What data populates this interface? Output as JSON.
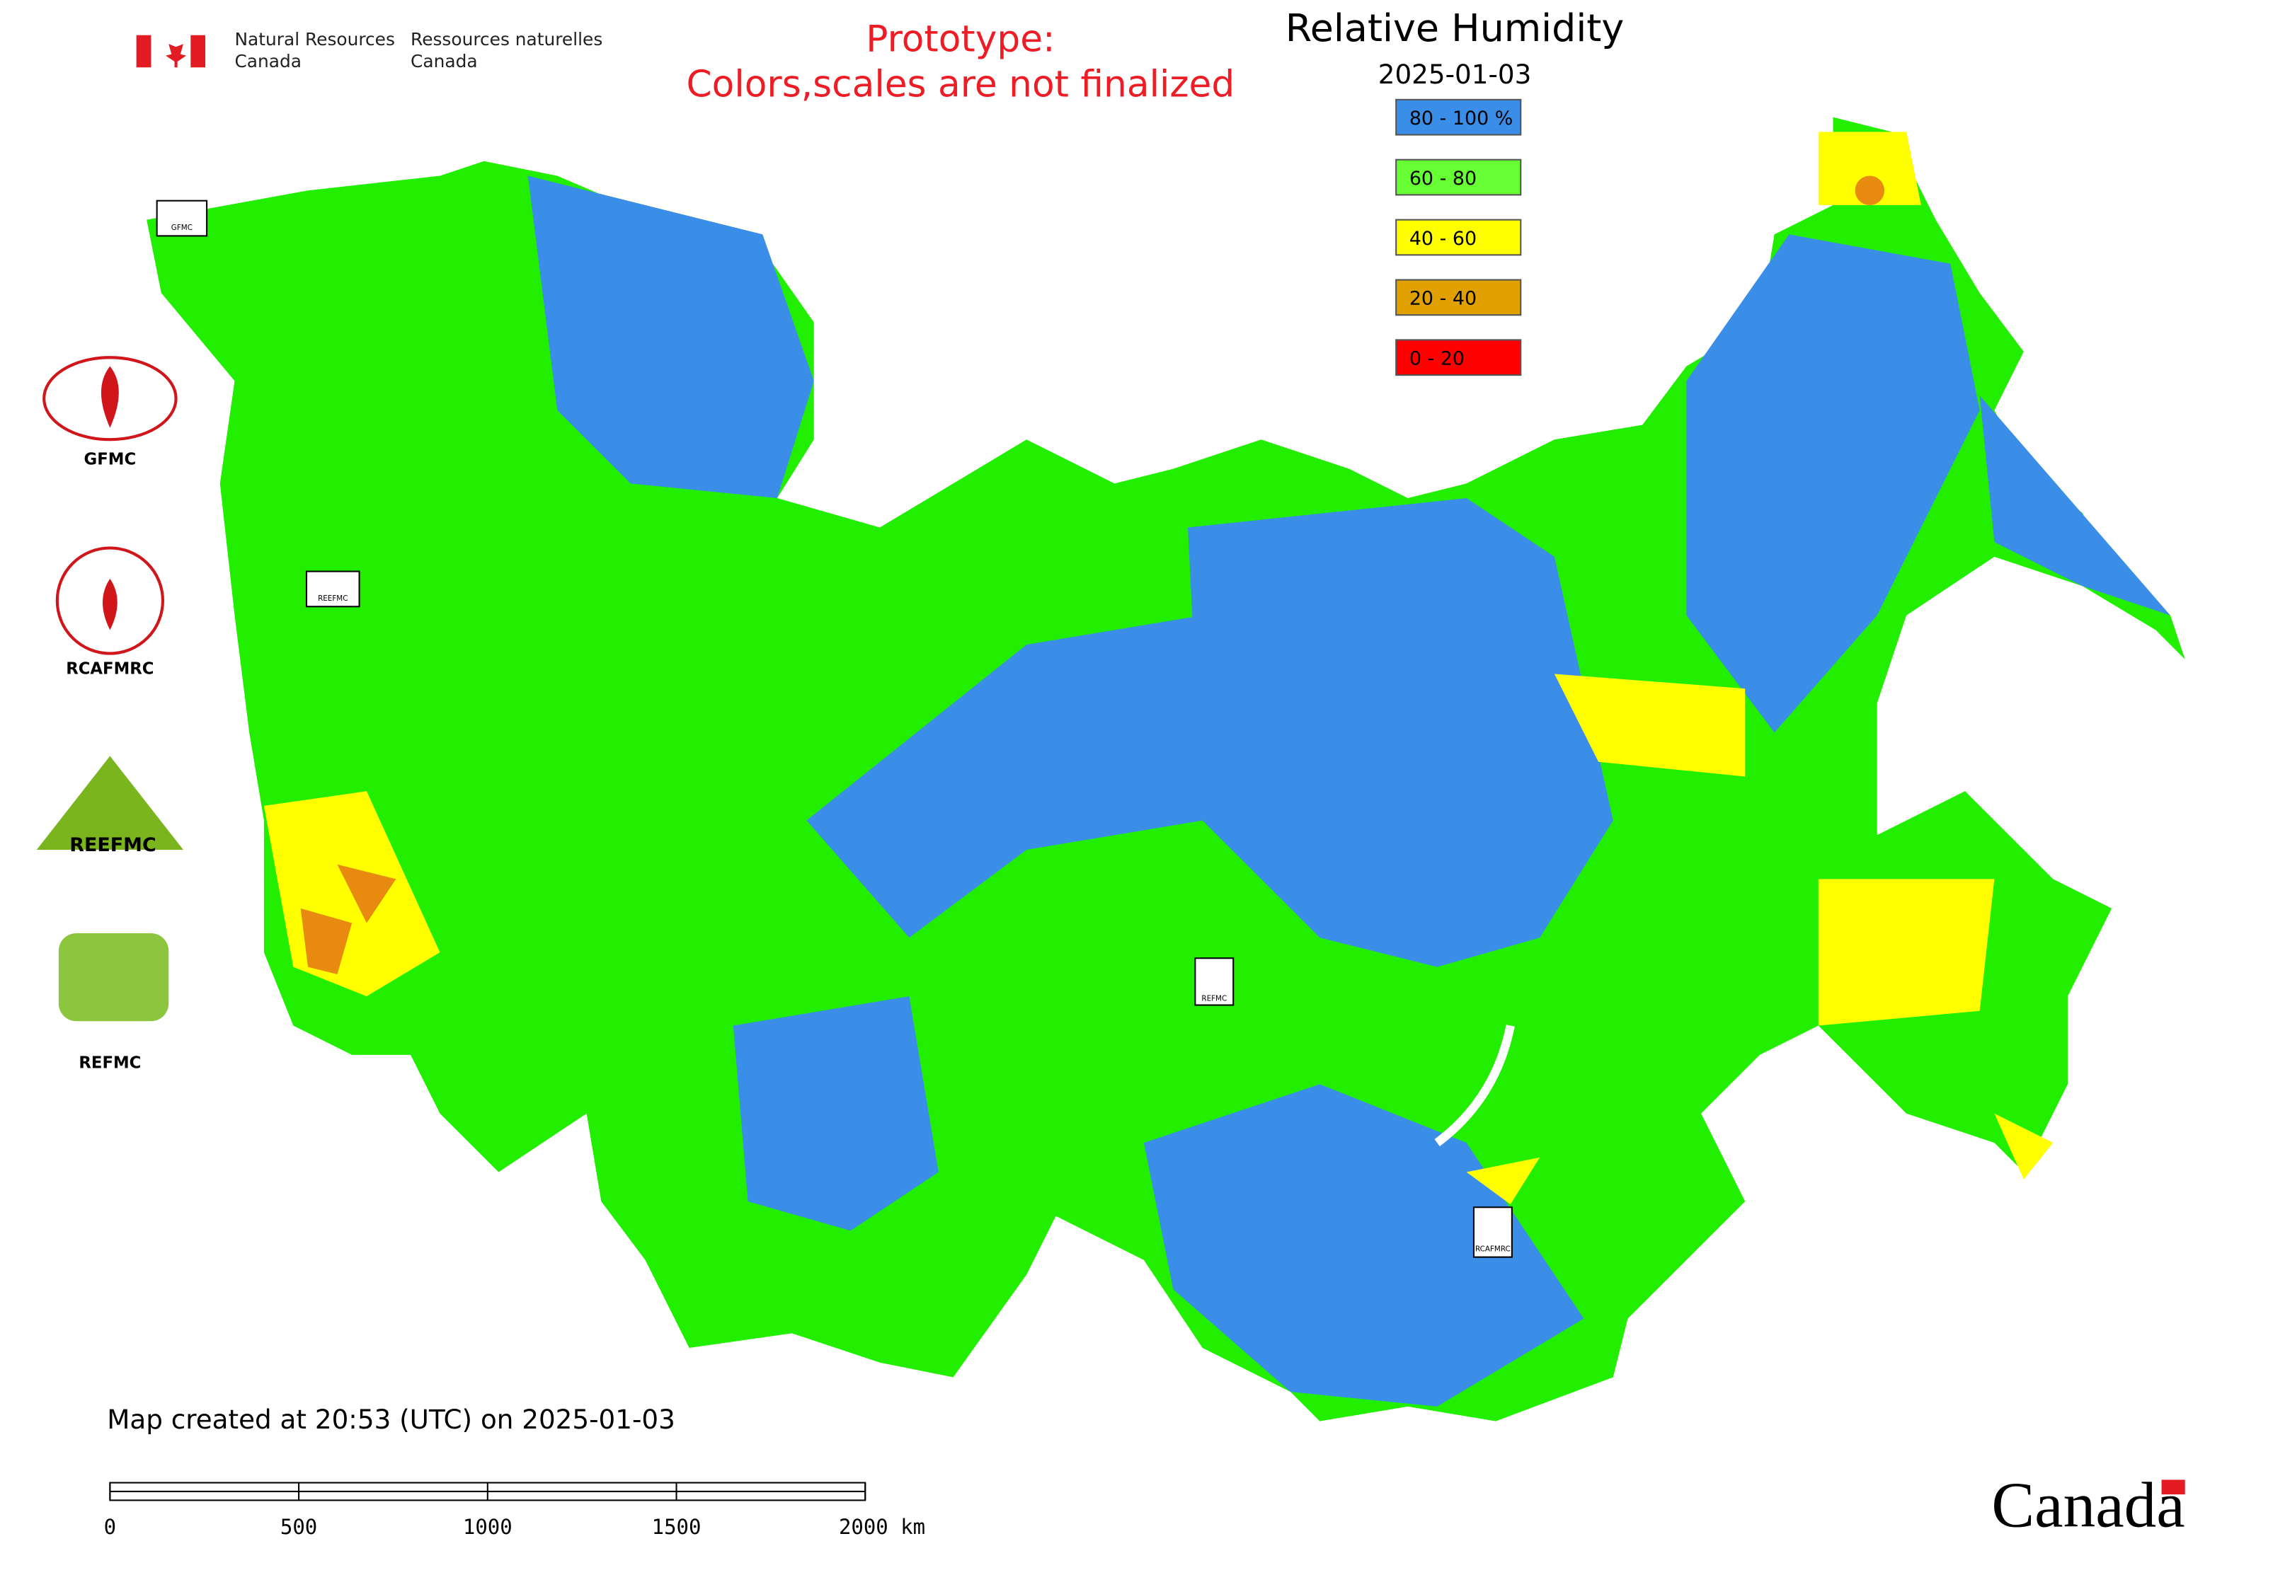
{
  "header": {
    "agency_en": [
      "Natural Resources",
      "Canada"
    ],
    "agency_fr": [
      "Ressources naturelles",
      "Canada"
    ]
  },
  "notice": [
    "Prototype:",
    "Colors,scales are not finalized"
  ],
  "title": "Relative Humidity",
  "date": "2025-01-03",
  "legend": [
    {
      "label": "80 - 100 %",
      "color": "#3a8ee8"
    },
    {
      "label": "60 - 80",
      "color": "#66ff33"
    },
    {
      "label": "40 - 60",
      "color": "#ffff00"
    },
    {
      "label": "20 - 40",
      "color": "#e0a000"
    },
    {
      "label": "0 - 20",
      "color": "#ff0000"
    }
  ],
  "logos": [
    "GFMC",
    "RCAFMRC",
    "REEFMC",
    "REFMC"
  ],
  "footer": "Map created at 20:53 (UTC) on 2025-01-03",
  "scale_bar": [
    "0",
    "500",
    "1000",
    "1500",
    "2000 km"
  ],
  "wordmark": "Canada"
}
